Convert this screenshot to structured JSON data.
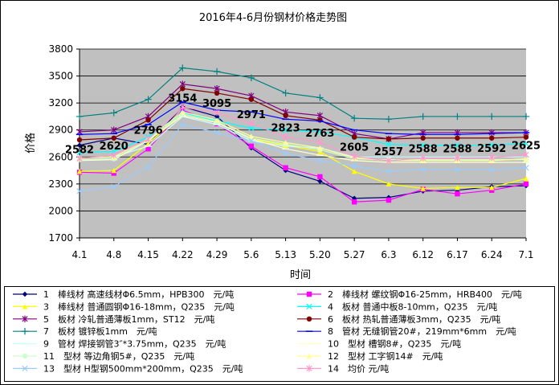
{
  "chart_data": {
    "type": "line",
    "title": "2016年4-6月份钢材价格走势图",
    "xlabel": "时间",
    "ylabel": "价格",
    "ylim": [
      1700,
      3800
    ],
    "yticks": [
      1700,
      2000,
      2300,
      2600,
      2900,
      3200,
      3500,
      3800
    ],
    "grid": true,
    "legend_position": "bottom",
    "categories": [
      "4.1",
      "4.8",
      "4.15",
      "4.22",
      "4.29",
      "5.6",
      "5.13",
      "5.20",
      "5.27",
      "6.3",
      "6.12",
      "6.17",
      "6.24",
      "7.1"
    ],
    "series": [
      {
        "name": "1　棒线材 高速线材Φ6.5mm，HPB300　元/吨",
        "color": "#000080",
        "marker": "diamond",
        "values": [
          2730,
          2810,
          2740,
          3160,
          3050,
          2700,
          2450,
          2330,
          2140,
          2150,
          2220,
          2230,
          2270,
          2280
        ]
      },
      {
        "name": "2　棒线材 螺纹钢Φ16-25mm，HRB400　元/吨",
        "color": "#FF00FF",
        "marker": "square",
        "values": [
          2430,
          2420,
          2690,
          3120,
          2970,
          2720,
          2480,
          2380,
          2100,
          2120,
          2240,
          2190,
          2230,
          2300
        ]
      },
      {
        "name": "3　棒线材 普通圆钢Φ16-18mm，Q235　元/吨",
        "color": "#FFFF00",
        "marker": "triangle",
        "values": [
          2440,
          2450,
          2750,
          3080,
          2990,
          2800,
          2730,
          2660,
          2440,
          2300,
          2250,
          2260,
          2260,
          2360
        ]
      },
      {
        "name": "4　板材 普通中板8-10mm，Q235　元/吨",
        "color": "#00FFFF",
        "marker": "x",
        "values": [
          2650,
          2660,
          2820,
          3090,
          3000,
          2920,
          2900,
          2880,
          2820,
          2740,
          2730,
          2730,
          2730,
          2750
        ]
      },
      {
        "name": "5　板材 冷轧普通薄板1mm，ST12　元/吨",
        "color": "#800080",
        "marker": "star",
        "values": [
          2880,
          2900,
          3050,
          3410,
          3360,
          3280,
          3100,
          3060,
          2860,
          2800,
          2870,
          2870,
          2870,
          2870
        ]
      },
      {
        "name": "6　板材 热轧普通薄板3mm，Q235　元/吨",
        "color": "#800000",
        "marker": "circle",
        "values": [
          2790,
          2810,
          3010,
          3360,
          3310,
          3240,
          3060,
          3010,
          2820,
          2800,
          2810,
          2810,
          2810,
          2820
        ]
      },
      {
        "name": "7　板材 镀锌板1mm　元/吨",
        "color": "#008080",
        "marker": "plus",
        "values": [
          3050,
          3090,
          3240,
          3590,
          3550,
          3480,
          3310,
          3260,
          3030,
          3020,
          3050,
          3050,
          3050,
          3050
        ]
      },
      {
        "name": "8　管材 无缝钢管20#，219mm*6mm　元/吨",
        "color": "#0000FF",
        "marker": "dash",
        "values": [
          2850,
          2860,
          2960,
          3210,
          3120,
          3100,
          3020,
          3000,
          2900,
          2860,
          2850,
          2850,
          2860,
          2870
        ]
      },
      {
        "name": "9　管材 焊接钢管3″*3.75mm，Q235　元/吨",
        "color": "#CCFFFF",
        "marker": "dash",
        "values": [
          2590,
          2600,
          2720,
          3050,
          2960,
          2780,
          2720,
          2700,
          2600,
          2600,
          2600,
          2600,
          2600,
          2600
        ]
      },
      {
        "name": "10　型材 槽钢8#，Q235　元/吨",
        "color": "#FFFFCC",
        "marker": "dash",
        "values": [
          2560,
          2570,
          2780,
          3060,
          2980,
          2800,
          2690,
          2620,
          2560,
          2540,
          2540,
          2540,
          2540,
          2540
        ]
      },
      {
        "name": "11　型材 等边角钢5#，Q235　元/吨",
        "color": "#CCFFCC",
        "marker": "circle",
        "values": [
          2570,
          2580,
          2790,
          3080,
          2990,
          2810,
          2740,
          2680,
          2580,
          2570,
          2570,
          2570,
          2570,
          2570
        ]
      },
      {
        "name": "12　型材 工字钢14#　元/吨",
        "color": "#FFFF99",
        "marker": "triangle",
        "values": [
          2590,
          2600,
          2800,
          3100,
          3010,
          2830,
          2760,
          2700,
          2590,
          2560,
          2560,
          2560,
          2560,
          2580
        ]
      },
      {
        "name": "13　型材 H型钢500mm*200mm，Q235　元/吨",
        "color": "#99CCFF",
        "marker": "x",
        "values": [
          2220,
          2270,
          2490,
          2960,
          2870,
          2780,
          2640,
          2560,
          2500,
          2440,
          2460,
          2460,
          2460,
          2480
        ]
      },
      {
        "name": "14　均价 元/吨",
        "color": "#FF99CC",
        "marker": "star",
        "values": [
          2582,
          2620,
          2796,
          3154,
          3095,
          2971,
          2823,
          2763,
          2605,
          2557,
          2588,
          2588,
          2592,
          2625
        ]
      }
    ],
    "data_labels": [
      "2582",
      "2620",
      "2796",
      "3154",
      "3095",
      "2971",
      "2823",
      "2763",
      "2605",
      "2557",
      "2588",
      "2588",
      "2592",
      "2625"
    ]
  }
}
